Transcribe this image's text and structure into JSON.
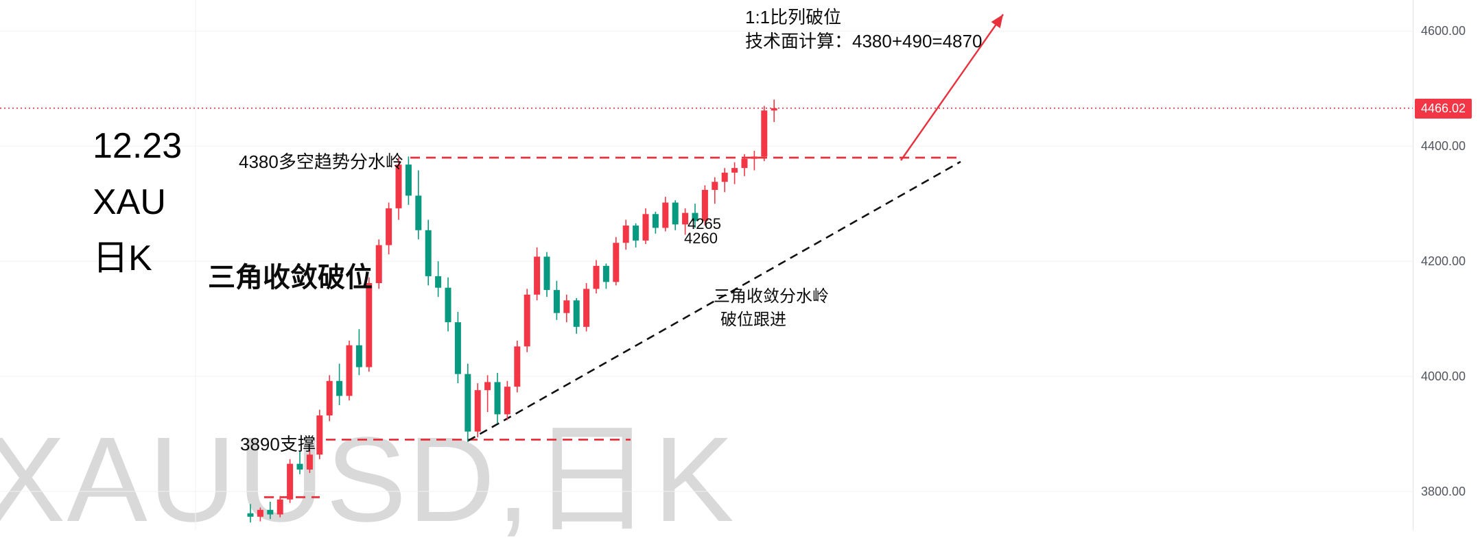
{
  "watermark": "XAUUSD,日K",
  "annotations": {
    "date_label": "12.23",
    "symbol_label": "XAU",
    "interval_label": "日K",
    "measure_line1": "1:1比列破位",
    "measure_line2": "技术面计算：4380+490=4870",
    "resistance_label": "4380多空趋势分水岭",
    "triangle_label": "三角收敛破位",
    "price_note_1": "4265",
    "price_note_2": "4260",
    "breakout_note_line1": "三角收敛分水岭",
    "breakout_note_line2": "破位跟进",
    "support_label": "3890支撑"
  },
  "price_axis": {
    "labels": [
      "4600.00",
      "4400.00",
      "4200.00",
      "4000.00",
      "3800.00"
    ],
    "current_price": "4466.02",
    "current_price_color": "#f23645"
  },
  "chart_data": {
    "type": "candlestick",
    "title": "XAUUSD 日K candlestick chart with triangle breakout annotations",
    "ylim": [
      3732,
      4654
    ],
    "price_gridlines": [
      4600,
      4400,
      4200,
      4000,
      3800
    ],
    "up_color": "#f23645",
    "down_color": "#089981",
    "grid_color": "#f0f2f6",
    "drawing_red": "#e8313c",
    "trendline_color": "#111111",
    "candles_ohlc": [
      [
        3762,
        3778,
        3746,
        3756
      ],
      [
        3756,
        3772,
        3748,
        3768
      ],
      [
        3768,
        3782,
        3752,
        3760
      ],
      [
        3760,
        3792,
        3755,
        3786
      ],
      [
        3786,
        3856,
        3780,
        3848
      ],
      [
        3848,
        3870,
        3830,
        3838
      ],
      [
        3838,
        3872,
        3832,
        3864
      ],
      [
        3864,
        3942,
        3856,
        3932
      ],
      [
        3932,
        4002,
        3922,
        3992
      ],
      [
        3992,
        4022,
        3950,
        3966
      ],
      [
        3966,
        4062,
        3958,
        4054
      ],
      [
        4054,
        4082,
        4002,
        4016
      ],
      [
        4016,
        4172,
        4008,
        4162
      ],
      [
        4162,
        4238,
        4152,
        4228
      ],
      [
        4228,
        4302,
        4212,
        4292
      ],
      [
        4292,
        4380,
        4272,
        4368
      ],
      [
        4368,
        4382,
        4298,
        4314
      ],
      [
        4314,
        4358,
        4238,
        4254
      ],
      [
        4254,
        4272,
        4158,
        4174
      ],
      [
        4174,
        4200,
        4138,
        4154
      ],
      [
        4154,
        4172,
        4078,
        4094
      ],
      [
        4094,
        4112,
        3988,
        4004
      ],
      [
        4004,
        4022,
        3886,
        3904
      ],
      [
        3904,
        3988,
        3894,
        3976
      ],
      [
        3976,
        4002,
        3938,
        3990
      ],
      [
        3990,
        4006,
        3918,
        3934
      ],
      [
        3934,
        3992,
        3924,
        3982
      ],
      [
        3982,
        4062,
        3972,
        4052
      ],
      [
        4052,
        4152,
        4042,
        4142
      ],
      [
        4142,
        4224,
        4132,
        4208
      ],
      [
        4208,
        4216,
        4138,
        4150
      ],
      [
        4150,
        4166,
        4098,
        4110
      ],
      [
        4110,
        4142,
        4094,
        4132
      ],
      [
        4132,
        4136,
        4074,
        4086
      ],
      [
        4086,
        4162,
        4078,
        4152
      ],
      [
        4152,
        4202,
        4144,
        4192
      ],
      [
        4192,
        4196,
        4152,
        4164
      ],
      [
        4164,
        4242,
        4158,
        4232
      ],
      [
        4232,
        4272,
        4220,
        4262
      ],
      [
        4262,
        4266,
        4224,
        4236
      ],
      [
        4236,
        4292,
        4230,
        4282
      ],
      [
        4282,
        4286,
        4248,
        4258
      ],
      [
        4258,
        4312,
        4252,
        4302
      ],
      [
        4302,
        4306,
        4254,
        4264
      ],
      [
        4264,
        4292,
        4246,
        4284
      ],
      [
        4284,
        4300,
        4258,
        4270
      ],
      [
        4270,
        4332,
        4262,
        4324
      ],
      [
        4324,
        4346,
        4300,
        4338
      ],
      [
        4338,
        4362,
        4320,
        4354
      ],
      [
        4354,
        4372,
        4334,
        4362
      ],
      [
        4362,
        4386,
        4348,
        4378
      ],
      [
        4378,
        4392,
        4358,
        4382
      ],
      [
        4382,
        4470,
        4374,
        4462
      ],
      [
        4462,
        4481,
        4442,
        4466.02
      ]
    ],
    "levels": [
      {
        "name": "resistance-4380",
        "price": 4380,
        "label": "4380多空趋势分水岭"
      },
      {
        "name": "support-3890",
        "price": 3890,
        "label": "3890支撑"
      },
      {
        "name": "minor-support-3790",
        "price": 3790,
        "label": ""
      }
    ],
    "trendline": {
      "from_price": 3888,
      "to_price": 4373,
      "style": "dashed"
    },
    "projection": {
      "label": "1:1比列破位",
      "calc": "技术面计算：4380+490=4870",
      "implied_target": 4870
    }
  }
}
